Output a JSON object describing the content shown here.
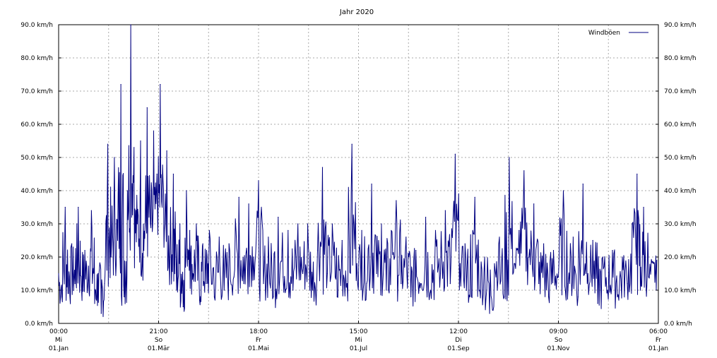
{
  "chart_data": {
    "type": "line",
    "title": "Jahr 2020",
    "xlabel": "",
    "ylabel": "",
    "grid": true,
    "legend_position": "top-right",
    "ylim": [
      0,
      90
    ],
    "y_ticks": [
      "0.0 km/h",
      "10.0 km/h",
      "20.0 km/h",
      "30.0 km/h",
      "40.0 km/h",
      "50.0 km/h",
      "60.0 km/h",
      "70.0 km/h",
      "80.0 km/h",
      "90.0 km/h"
    ],
    "x_ticks": [
      {
        "time": "00:00",
        "day": "Mi",
        "date": "01.Jan"
      },
      {
        "time": "21:00",
        "day": "So",
        "date": "01.Mär"
      },
      {
        "time": "18:00",
        "day": "Fr",
        "date": "01.Mai"
      },
      {
        "time": "15:00",
        "day": "Mi",
        "date": "01.Jul"
      },
      {
        "time": "12:00",
        "day": "Di",
        "date": "01.Sep"
      },
      {
        "time": "09:00",
        "day": "So",
        "date": "01.Nov"
      },
      {
        "time": "06:00",
        "day": "Fr",
        "date": "01.Jan"
      }
    ],
    "series": [
      {
        "name": "Windböen",
        "color": "#000080",
        "points": [
          [
            "2020-01-01",
            15
          ],
          [
            "2020-01-03",
            8
          ],
          [
            "2020-01-05",
            35
          ],
          [
            "2020-01-07",
            9
          ],
          [
            "2020-01-09",
            24
          ],
          [
            "2020-01-11",
            12
          ],
          [
            "2020-01-13",
            35
          ],
          [
            "2020-01-15",
            10
          ],
          [
            "2020-01-17",
            22
          ],
          [
            "2020-01-19",
            13
          ],
          [
            "2020-01-21",
            34
          ],
          [
            "2020-01-23",
            6
          ],
          [
            "2020-01-25",
            15
          ],
          [
            "2020-01-27",
            3
          ],
          [
            "2020-01-29",
            12
          ],
          [
            "2020-01-31",
            54
          ],
          [
            "2020-02-02",
            20
          ],
          [
            "2020-02-04",
            50
          ],
          [
            "2020-02-06",
            25
          ],
          [
            "2020-02-08",
            72
          ],
          [
            "2020-02-10",
            8
          ],
          [
            "2020-02-12",
            40
          ],
          [
            "2020-02-14",
            90
          ],
          [
            "2020-02-16",
            53
          ],
          [
            "2020-02-18",
            30
          ],
          [
            "2020-02-20",
            55
          ],
          [
            "2020-02-22",
            22
          ],
          [
            "2020-02-24",
            65
          ],
          [
            "2020-02-26",
            30
          ],
          [
            "2020-02-28",
            58
          ],
          [
            "2020-03-01",
            45
          ],
          [
            "2020-03-03",
            72
          ],
          [
            "2020-03-05",
            40
          ],
          [
            "2020-03-07",
            52
          ],
          [
            "2020-03-09",
            20
          ],
          [
            "2020-03-11",
            45
          ],
          [
            "2020-03-13",
            10
          ],
          [
            "2020-03-15",
            30
          ],
          [
            "2020-03-17",
            5
          ],
          [
            "2020-03-19",
            40
          ],
          [
            "2020-03-21",
            28
          ],
          [
            "2020-03-23",
            15
          ],
          [
            "2020-03-25",
            30
          ],
          [
            "2020-03-27",
            7
          ],
          [
            "2020-03-29",
            24
          ],
          [
            "2020-03-31",
            12
          ],
          [
            "2020-04-02",
            28
          ],
          [
            "2020-04-05",
            8
          ],
          [
            "2020-04-08",
            26
          ],
          [
            "2020-04-11",
            10
          ],
          [
            "2020-04-14",
            24
          ],
          [
            "2020-04-17",
            14
          ],
          [
            "2020-04-20",
            38
          ],
          [
            "2020-04-23",
            12
          ],
          [
            "2020-04-26",
            36
          ],
          [
            "2020-04-29",
            20
          ],
          [
            "2020-05-02",
            43
          ],
          [
            "2020-05-05",
            12
          ],
          [
            "2020-05-08",
            26
          ],
          [
            "2020-05-11",
            8
          ],
          [
            "2020-05-14",
            32
          ],
          [
            "2020-05-17",
            14
          ],
          [
            "2020-05-20",
            28
          ],
          [
            "2020-05-23",
            10
          ],
          [
            "2020-05-26",
            30
          ],
          [
            "2020-05-29",
            15
          ],
          [
            "2020-06-01",
            30
          ],
          [
            "2020-06-04",
            10
          ],
          [
            "2020-06-07",
            22
          ],
          [
            "2020-06-10",
            47
          ],
          [
            "2020-06-13",
            15
          ],
          [
            "2020-06-16",
            30
          ],
          [
            "2020-06-19",
            8
          ],
          [
            "2020-06-22",
            25
          ],
          [
            "2020-06-25",
            12
          ],
          [
            "2020-06-28",
            54
          ],
          [
            "2020-07-01",
            18
          ],
          [
            "2020-07-04",
            28
          ],
          [
            "2020-07-07",
            12
          ],
          [
            "2020-07-10",
            42
          ],
          [
            "2020-07-13",
            15
          ],
          [
            "2020-07-16",
            30
          ],
          [
            "2020-07-19",
            10
          ],
          [
            "2020-07-22",
            28
          ],
          [
            "2020-07-25",
            37
          ],
          [
            "2020-07-28",
            12
          ],
          [
            "2020-07-31",
            26
          ],
          [
            "2020-08-03",
            8
          ],
          [
            "2020-08-06",
            22
          ],
          [
            "2020-08-09",
            12
          ],
          [
            "2020-08-12",
            32
          ],
          [
            "2020-08-15",
            10
          ],
          [
            "2020-08-18",
            28
          ],
          [
            "2020-08-21",
            15
          ],
          [
            "2020-08-24",
            34
          ],
          [
            "2020-08-27",
            12
          ],
          [
            "2020-08-30",
            51
          ],
          [
            "2020-09-02",
            18
          ],
          [
            "2020-09-05",
            24
          ],
          [
            "2020-09-08",
            8
          ],
          [
            "2020-09-11",
            38
          ],
          [
            "2020-09-14",
            10
          ],
          [
            "2020-09-17",
            20
          ],
          [
            "2020-09-20",
            3
          ],
          [
            "2020-09-23",
            18
          ],
          [
            "2020-09-26",
            26
          ],
          [
            "2020-09-29",
            8
          ],
          [
            "2020-10-02",
            50
          ],
          [
            "2020-10-05",
            18
          ],
          [
            "2020-10-08",
            28
          ],
          [
            "2020-10-11",
            46
          ],
          [
            "2020-10-14",
            20
          ],
          [
            "2020-10-17",
            36
          ],
          [
            "2020-10-20",
            12
          ],
          [
            "2020-10-23",
            24
          ],
          [
            "2020-10-26",
            8
          ],
          [
            "2020-10-29",
            22
          ],
          [
            "2020-11-01",
            14
          ],
          [
            "2020-11-04",
            40
          ],
          [
            "2020-11-07",
            12
          ],
          [
            "2020-11-10",
            26
          ],
          [
            "2020-11-13",
            8
          ],
          [
            "2020-11-16",
            42
          ],
          [
            "2020-11-19",
            15
          ],
          [
            "2020-11-22",
            25
          ],
          [
            "2020-11-25",
            6
          ],
          [
            "2020-11-28",
            20
          ],
          [
            "2020-12-01",
            10
          ],
          [
            "2020-12-04",
            22
          ],
          [
            "2020-12-07",
            8
          ],
          [
            "2020-12-10",
            20
          ],
          [
            "2020-12-13",
            12
          ],
          [
            "2020-12-16",
            30
          ],
          [
            "2020-12-19",
            45
          ],
          [
            "2020-12-21",
            10
          ],
          [
            "2020-12-23",
            35
          ],
          [
            "2020-12-26",
            14
          ],
          [
            "2020-12-29",
            18
          ],
          [
            "2020-12-31",
            19
          ]
        ]
      }
    ]
  }
}
